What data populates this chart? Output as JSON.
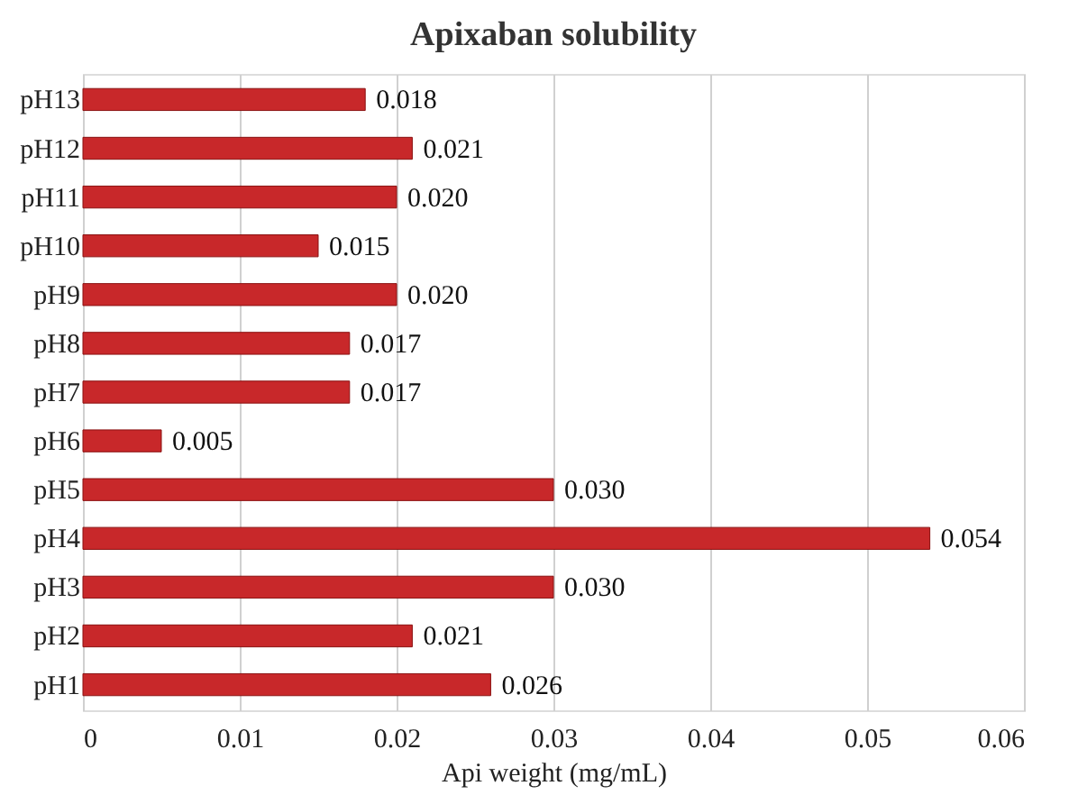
{
  "chart_data": {
    "type": "bar",
    "orientation": "horizontal",
    "title": "Apixaban  solubility",
    "xlabel": "Api weight (mg/mL)",
    "categories": [
      "pH13",
      "pH12",
      "pH11",
      "pH10",
      "pH9",
      "pH8",
      "pH7",
      "pH6",
      "pH5",
      "pH4",
      "pH3",
      "pH2",
      "pH1"
    ],
    "values": [
      0.018,
      0.021,
      0.02,
      0.015,
      0.02,
      0.017,
      0.017,
      0.005,
      0.03,
      0.054,
      0.03,
      0.021,
      0.026
    ],
    "value_labels": [
      "0.018",
      "0.021",
      "0.020",
      "0.015",
      "0.020",
      "0.017",
      "0.017",
      "0.005",
      "0.030",
      "0.054",
      "0.030",
      "0.021",
      "0.026"
    ],
    "color": "#c8282a",
    "xlim": [
      0,
      0.06
    ],
    "xticks": [
      {
        "value": 0,
        "label": "0"
      },
      0.01,
      0.02,
      0.03,
      0.04,
      0.05,
      0.06
    ],
    "grid": "x"
  }
}
